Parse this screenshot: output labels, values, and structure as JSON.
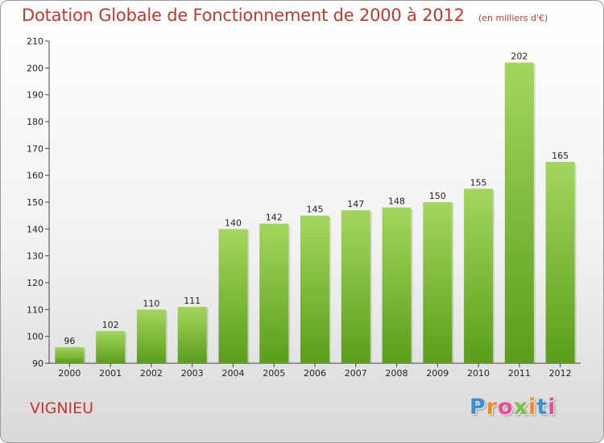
{
  "header": {
    "title": "Dotation Globale de Fonctionnement de 2000 à 2012",
    "unit": "(en milliers d'€)"
  },
  "footer": {
    "commune": "VIGNIEU",
    "brand_letters": [
      "P",
      "r",
      "o",
      "x",
      "i",
      "t",
      "i"
    ],
    "brand_colors": [
      "#3a8fd6",
      "#f28c1e",
      "#e84a9a",
      "#7cc242",
      "#f28c1e",
      "#3a8fd6",
      "#e84a9a"
    ]
  },
  "chart_data": {
    "type": "bar",
    "categories": [
      "2000",
      "2001",
      "2002",
      "2003",
      "2004",
      "2005",
      "2006",
      "2007",
      "2008",
      "2009",
      "2010",
      "2011",
      "2012"
    ],
    "values": [
      96,
      102,
      110,
      111,
      140,
      142,
      145,
      147,
      148,
      150,
      155,
      202,
      165
    ],
    "ylim": [
      90,
      210
    ],
    "yticks": [
      90,
      100,
      110,
      120,
      130,
      140,
      150,
      160,
      170,
      180,
      190,
      200,
      210
    ],
    "grid": false,
    "bar_color_top": "#a4d65e",
    "bar_color_bottom": "#5a9e1a"
  }
}
